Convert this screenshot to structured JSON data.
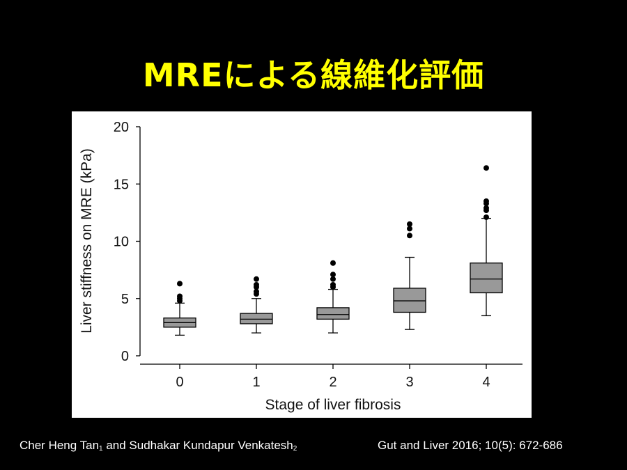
{
  "slide": {
    "title": "MREによる線維化評価",
    "authors": {
      "name1": "Cher Heng Tan",
      "aff1": "1",
      "joiner": " and ",
      "name2": "Sudhakar Kundapur Venkatesh",
      "aff2": "2"
    },
    "citation": "Gut and Liver 2016; 10(5): 672-686"
  },
  "colors": {
    "background": "#000000",
    "title": "#ffff00",
    "box_fill": "#999999",
    "panel": "#ffffff"
  },
  "chart_data": {
    "type": "box",
    "title": "",
    "xlabel": "Stage of liver fibrosis",
    "ylabel": "Liver stiffness on MRE (kPa)",
    "categories": [
      "0",
      "1",
      "2",
      "3",
      "4"
    ],
    "ylim": [
      0,
      20
    ],
    "yticks": [
      0,
      5,
      10,
      15,
      20
    ],
    "grid": false,
    "legend": "none",
    "boxes": [
      {
        "category": "0",
        "whisker_low": 1.8,
        "q1": 2.5,
        "median": 2.9,
        "q3": 3.3,
        "whisker_high": 4.6,
        "outliers": [
          4.8,
          5.0,
          5.2,
          6.3
        ]
      },
      {
        "category": "1",
        "whisker_low": 2.0,
        "q1": 2.8,
        "median": 3.2,
        "q3": 3.7,
        "whisker_high": 5.0,
        "outliers": [
          5.4,
          5.6,
          6.0,
          6.2,
          6.7
        ]
      },
      {
        "category": "2",
        "whisker_low": 2.0,
        "q1": 3.2,
        "median": 3.6,
        "q3": 4.2,
        "whisker_high": 5.8,
        "outliers": [
          6.0,
          6.2,
          6.7,
          7.1,
          8.1
        ]
      },
      {
        "category": "3",
        "whisker_low": 2.3,
        "q1": 3.8,
        "median": 4.8,
        "q3": 5.9,
        "whisker_high": 8.6,
        "outliers": [
          10.5,
          11.1,
          11.5
        ]
      },
      {
        "category": "4",
        "whisker_low": 3.5,
        "q1": 5.5,
        "median": 6.7,
        "q3": 8.1,
        "whisker_high": 12.0,
        "outliers": [
          12.1,
          12.7,
          12.9,
          13.3,
          13.5,
          16.4
        ]
      }
    ]
  }
}
